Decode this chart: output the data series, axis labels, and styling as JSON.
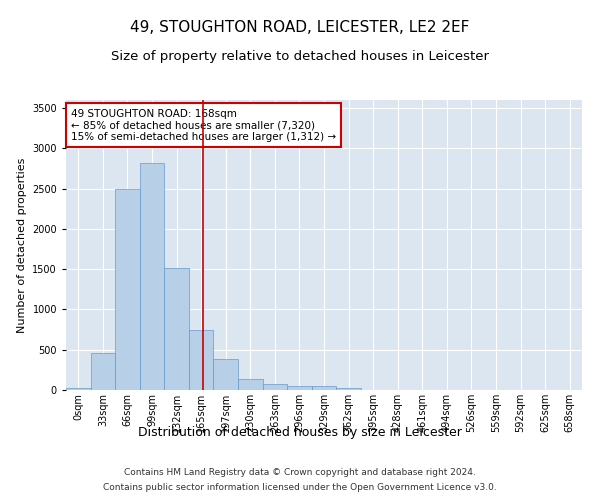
{
  "title": "49, STOUGHTON ROAD, LEICESTER, LE2 2EF",
  "subtitle": "Size of property relative to detached houses in Leicester",
  "xlabel": "Distribution of detached houses by size in Leicester",
  "ylabel": "Number of detached properties",
  "footnote1": "Contains HM Land Registry data © Crown copyright and database right 2024.",
  "footnote2": "Contains public sector information licensed under the Open Government Licence v3.0.",
  "bin_labels": [
    "0sqm",
    "33sqm",
    "66sqm",
    "99sqm",
    "132sqm",
    "165sqm",
    "197sqm",
    "230sqm",
    "263sqm",
    "296sqm",
    "329sqm",
    "362sqm",
    "395sqm",
    "428sqm",
    "461sqm",
    "494sqm",
    "526sqm",
    "559sqm",
    "592sqm",
    "625sqm",
    "658sqm"
  ],
  "bar_values": [
    25,
    460,
    2500,
    2820,
    1520,
    750,
    390,
    140,
    70,
    50,
    50,
    25,
    0,
    0,
    0,
    0,
    0,
    0,
    0,
    0,
    0
  ],
  "bar_color": "#b8cfe8",
  "bar_edge_color": "#6699cc",
  "vline_x": 5.09,
  "vline_color": "#cc0000",
  "annotation_text": "49 STOUGHTON ROAD: 168sqm\n← 85% of detached houses are smaller (7,320)\n15% of semi-detached houses are larger (1,312) →",
  "annotation_box_color": "#cc0000",
  "ylim": [
    0,
    3600
  ],
  "yticks": [
    0,
    500,
    1000,
    1500,
    2000,
    2500,
    3000,
    3500
  ],
  "background_color": "#dce6f1",
  "grid_color": "#ffffff",
  "fig_background": "#ffffff",
  "title_fontsize": 11,
  "subtitle_fontsize": 9.5,
  "xlabel_fontsize": 9,
  "ylabel_fontsize": 8,
  "tick_fontsize": 7,
  "footnote_fontsize": 6.5,
  "annotation_fontsize": 7.5
}
